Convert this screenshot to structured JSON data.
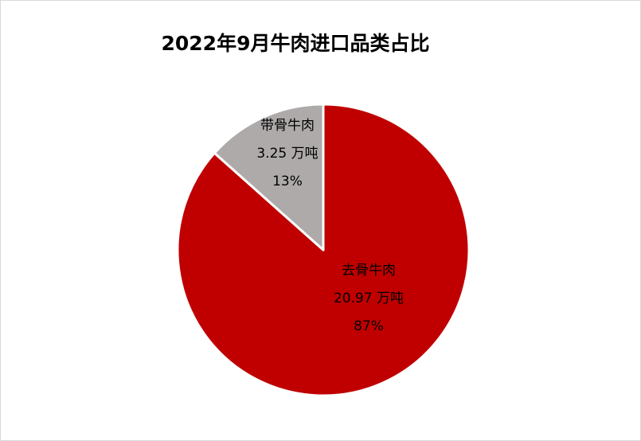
{
  "chart_data": {
    "type": "pie",
    "title": "2022年9月牛肉进口品类占比",
    "slices": [
      {
        "name": "去骨牛肉",
        "value": 20.97,
        "unit": "万吨",
        "percent": "87%",
        "color": "#c00000"
      },
      {
        "name": "带骨牛肉",
        "value": 3.25,
        "unit": "万吨",
        "percent": "13%",
        "color": "#aeaaaa"
      }
    ],
    "start_angle": "12 o'clock",
    "direction": "clockwise",
    "legend": "none"
  }
}
